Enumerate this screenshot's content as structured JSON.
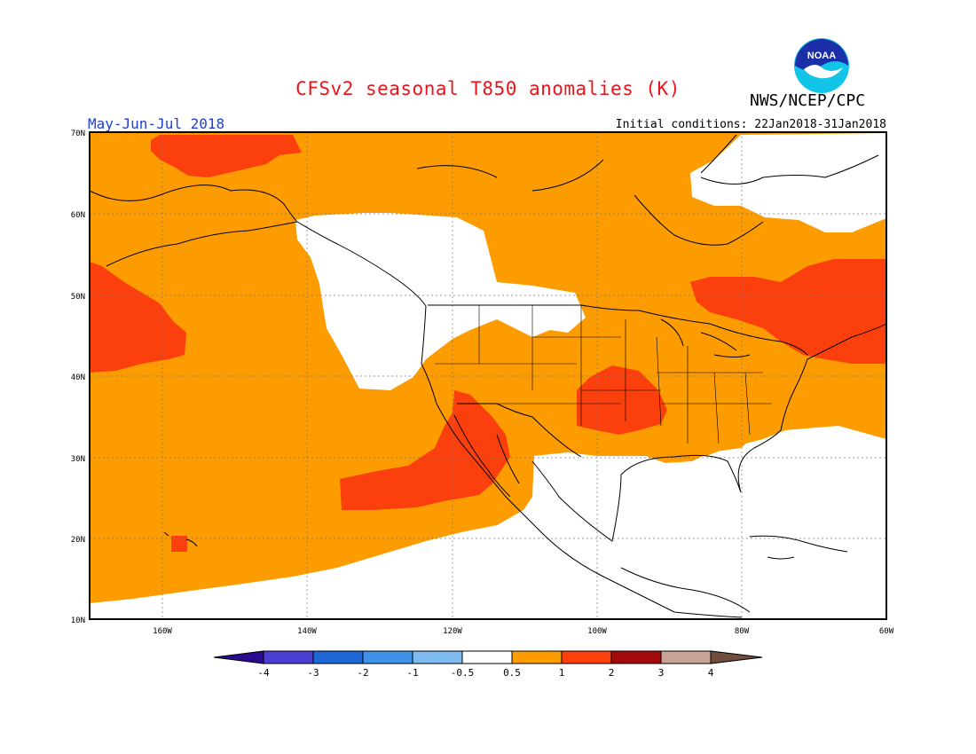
{
  "title": "CFSv2 seasonal T850 anomalies (K)",
  "agency": "NWS/NCEP/CPC",
  "season": "May-Jun-Jul 2018",
  "initial_conditions": "Initial conditions: 22Jan2018-31Jan2018",
  "logo_text": "NOAA",
  "map": {
    "lon_labels": [
      "160W",
      "140W",
      "120W",
      "100W",
      "80W",
      "60W"
    ],
    "lat_labels": [
      "70N",
      "60N",
      "50N",
      "40N",
      "30N",
      "20N",
      "10N"
    ]
  },
  "colorbar": {
    "labels": [
      "-4",
      "-3",
      "-2",
      "-1",
      "-0.5",
      "0.5",
      "1",
      "2",
      "3",
      "4"
    ],
    "colors": [
      "#2a0a8f",
      "#4a3fd0",
      "#1d67d6",
      "#3e93e8",
      "#7fbaf0",
      "#ffffff",
      "#fc9c01",
      "#fc400d",
      "#a4090b",
      "#c8a395",
      "#714f40"
    ]
  },
  "palette": {
    "orange": "#fc9c01",
    "red": "#fc400d",
    "white": "#ffffff"
  }
}
